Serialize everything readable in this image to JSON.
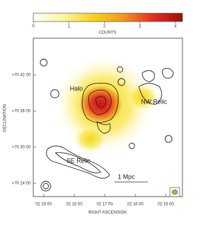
{
  "figure": {
    "colorbar": {
      "label": "COUNTS",
      "range": [
        0,
        4.2
      ],
      "ticks": [
        0,
        1,
        2,
        3,
        4
      ]
    },
    "x_axis": {
      "label": "RIGHT ASCENSION",
      "ticks": [
        "02 19 00",
        "02 18 00",
        "02 17 00",
        "02 16 00",
        "02 15 00"
      ]
    },
    "y_axis": {
      "label": "DECLINATION",
      "ticks": [
        "+70 42 00",
        "+70 36 00",
        "+70 30 00",
        "+70 24 00"
      ]
    },
    "annotations": {
      "halo": "Halo",
      "nw_relic": "NW Relic",
      "se_relic": "SE Relic",
      "scale": "1 Mpc"
    }
  }
}
